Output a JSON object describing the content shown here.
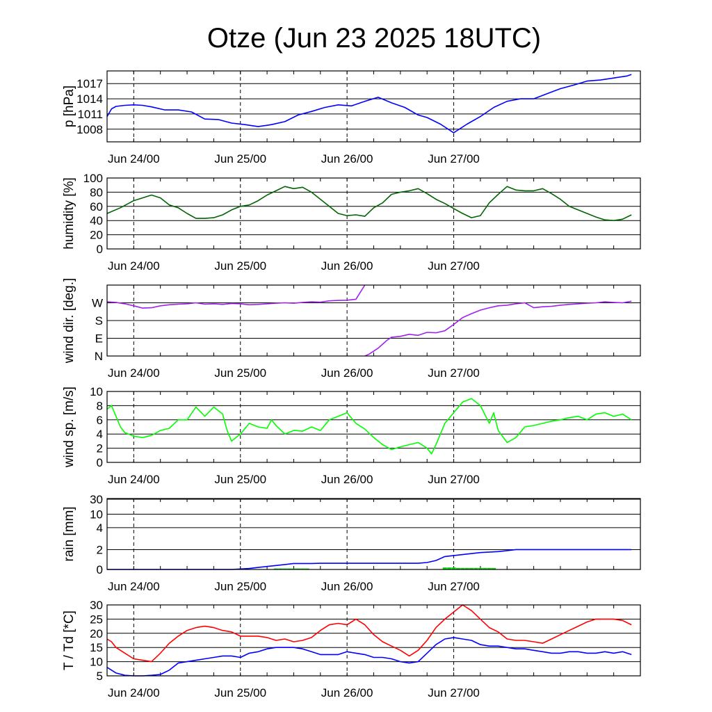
{
  "title": "Otze (Jun 23 2025 18UTC)",
  "x_tick_labels": [
    "Jun 24/00",
    "Jun 25/00",
    "Jun 26/00",
    "Jun 27/00"
  ],
  "colors": {
    "pressure": "#0000ff",
    "humidity": "#006400",
    "wind_dir": "#a020f0",
    "wind_speed": "#00ff00",
    "rain_accum": "#0000ff",
    "rain_rate": "#00dd00",
    "temperature": "#ff0000",
    "dewpoint": "#0000ff"
  },
  "chart_data": [
    {
      "type": "line",
      "ylabel": "p [hPa]",
      "x_unit": "hours since Jun 23 18UTC",
      "ylim": [
        1005.5,
        1019.5
      ],
      "yticks": [
        1008,
        1011,
        1014,
        1017
      ],
      "ytick_labels": [
        "1008",
        "1011",
        "1014",
        "1017"
      ],
      "series": [
        {
          "name": "pressure",
          "x": [
            0,
            1,
            2,
            4,
            6,
            8,
            10,
            13,
            16,
            19,
            22,
            25,
            28,
            31,
            34,
            37,
            40,
            43,
            46,
            49,
            52,
            55,
            58,
            61,
            64,
            67,
            70,
            72,
            75,
            78,
            81,
            84,
            87,
            90,
            93,
            96,
            99,
            102,
            105,
            108,
            111,
            114,
            117,
            118
          ],
          "y": [
            1010.5,
            1012.0,
            1012.5,
            1012.7,
            1012.8,
            1012.7,
            1012.4,
            1011.8,
            1011.8,
            1011.4,
            1010.0,
            1009.9,
            1009.2,
            1008.9,
            1008.5,
            1008.9,
            1009.5,
            1010.8,
            1011.5,
            1012.3,
            1012.8,
            1012.6,
            1013.5,
            1014.3,
            1013.2,
            1012.3,
            1010.8,
            1010.3,
            1009.0,
            1007.3,
            1009.0,
            1010.5,
            1012.3,
            1013.5,
            1014.0,
            1014.0,
            1015.0,
            1016.0,
            1016.7,
            1017.5,
            1017.7,
            1018.1,
            1018.5,
            1018.8
          ]
        }
      ]
    },
    {
      "type": "line",
      "ylabel": "humidity [%]",
      "ylim": [
        0,
        100
      ],
      "yticks": [
        0,
        20,
        40,
        60,
        80,
        100
      ],
      "ytick_labels": [
        "0",
        "20",
        "40",
        "60",
        "80",
        "100"
      ],
      "series": [
        {
          "name": "humidity",
          "x": [
            0,
            3,
            6,
            8,
            10,
            12,
            14,
            16,
            18,
            20,
            22,
            24,
            26,
            28,
            30,
            32,
            34,
            36,
            38,
            40,
            42,
            44,
            46,
            48,
            50,
            52,
            54,
            56,
            58,
            60,
            62,
            64,
            66,
            68,
            70,
            72,
            74,
            76,
            78,
            80,
            82,
            84,
            86,
            88,
            90,
            92,
            94,
            96,
            98,
            100,
            102,
            104,
            106,
            108,
            110,
            112,
            114,
            116,
            118
          ],
          "y": [
            50,
            58,
            68,
            72,
            76,
            72,
            62,
            58,
            50,
            43,
            43,
            44,
            48,
            55,
            60,
            62,
            68,
            76,
            82,
            88,
            85,
            87,
            80,
            70,
            60,
            50,
            47,
            48,
            46,
            58,
            65,
            77,
            80,
            82,
            85,
            78,
            70,
            64,
            57,
            50,
            44,
            47,
            65,
            77,
            88,
            83,
            82,
            82,
            85,
            78,
            70,
            60,
            55,
            50,
            45,
            41,
            40,
            42,
            48
          ]
        }
      ]
    },
    {
      "type": "line",
      "ylabel": "wind dir. [deg.]",
      "ylim": [
        0,
        360
      ],
      "yticks": [
        0,
        90,
        180,
        270
      ],
      "ytick_labels": [
        "N",
        "E",
        "S",
        "W"
      ],
      "series": [
        {
          "name": "wind direction",
          "x": [
            0,
            2,
            4,
            6,
            8,
            10,
            12,
            14,
            16,
            18,
            20,
            22,
            24,
            26,
            28,
            30,
            32,
            34,
            36,
            38,
            40,
            42,
            44,
            46,
            48,
            50,
            52,
            54,
            56,
            58,
            58.01,
            59,
            60,
            61,
            62,
            63,
            64,
            66,
            68,
            70,
            72,
            74,
            76,
            78,
            80,
            82,
            84,
            86,
            88,
            90,
            92,
            94,
            96,
            98,
            100,
            102,
            104,
            106,
            108,
            110,
            112,
            114,
            116,
            118
          ],
          "y": [
            275,
            272,
            265,
            255,
            243,
            245,
            255,
            260,
            263,
            265,
            270,
            263,
            265,
            262,
            267,
            265,
            260,
            262,
            265,
            268,
            270,
            268,
            272,
            275,
            273,
            280,
            282,
            283,
            288,
            360,
            0,
            10,
            25,
            40,
            60,
            80,
            95,
            100,
            110,
            105,
            120,
            118,
            128,
            160,
            195,
            215,
            233,
            245,
            255,
            258,
            265,
            270,
            245,
            250,
            252,
            258,
            262,
            265,
            268,
            270,
            275,
            272,
            270,
            278
          ]
        }
      ]
    },
    {
      "type": "line",
      "ylabel": "wind sp. [m/s]",
      "ylim": [
        0,
        10
      ],
      "yticks": [
        0,
        2,
        4,
        6,
        8,
        10
      ],
      "ytick_labels": [
        "0",
        "2",
        "4",
        "6",
        "8",
        "10"
      ],
      "series": [
        {
          "name": "wind speed",
          "x": [
            0,
            1,
            2,
            3,
            4,
            6,
            8,
            10,
            12,
            14,
            16,
            18,
            20,
            22,
            24,
            26,
            27,
            28,
            30,
            32,
            34,
            36,
            37,
            38,
            40,
            42,
            44,
            46,
            48,
            50,
            52,
            54,
            56,
            58,
            60,
            62,
            64,
            66,
            68,
            70,
            72,
            73,
            74,
            76,
            78,
            80,
            82,
            84,
            86,
            87,
            88,
            90,
            92,
            94,
            96,
            98,
            100,
            102,
            104,
            106,
            108,
            110,
            112,
            114,
            116,
            118
          ],
          "y": [
            7.5,
            8.0,
            6.5,
            5.0,
            4.2,
            3.7,
            3.5,
            3.8,
            4.5,
            4.8,
            6.0,
            6.0,
            7.8,
            6.5,
            7.8,
            6.8,
            4.5,
            3.0,
            4.0,
            5.5,
            5.0,
            4.8,
            6.0,
            5.2,
            4.0,
            4.5,
            4.4,
            5.0,
            4.5,
            6.0,
            6.5,
            7.0,
            5.5,
            4.7,
            3.5,
            2.5,
            1.8,
            2.2,
            2.5,
            2.8,
            2.0,
            1.2,
            2.5,
            5.5,
            7.0,
            8.5,
            9.0,
            8.0,
            5.5,
            7.0,
            4.5,
            2.8,
            3.5,
            5.0,
            5.2,
            5.5,
            5.8,
            6.0,
            6.3,
            6.5,
            6.0,
            6.8,
            7.0,
            6.5,
            6.8,
            6.0
          ]
        }
      ]
    },
    {
      "type": "line",
      "ylabel": "rain [mm]",
      "yticks": [
        0,
        2,
        4,
        10,
        30
      ],
      "ytick_labels": [
        "0",
        "2",
        "4",
        "10",
        "30"
      ],
      "series": [
        {
          "name": "rain accumulated",
          "x": [
            0,
            28,
            30,
            32,
            34,
            36,
            38,
            40,
            42,
            44,
            46,
            48,
            60,
            70,
            72,
            74,
            76,
            80,
            84,
            88,
            90,
            92,
            95,
            100,
            105,
            110,
            118
          ],
          "y": [
            0,
            0,
            0.05,
            0.1,
            0.2,
            0.3,
            0.4,
            0.5,
            0.6,
            0.6,
            0.6,
            0.62,
            0.62,
            0.62,
            0.7,
            0.9,
            1.3,
            1.5,
            1.7,
            1.8,
            1.9,
            2.0,
            2.0,
            2.0,
            2.0,
            2.0,
            2.0
          ]
        },
        {
          "name": "rain rate",
          "x": [
            38,
            39,
            40,
            41,
            42,
            43,
            44,
            45,
            76,
            77,
            78,
            79,
            80,
            81,
            82,
            83,
            84,
            85,
            86,
            87
          ],
          "y": [
            0.1,
            0.1,
            0.1,
            0.1,
            0.1,
            0.1,
            0.1,
            0.1,
            0.2,
            0.2,
            0.2,
            0.15,
            0.15,
            0.15,
            0.15,
            0.15,
            0.15,
            0.15,
            0.15,
            0.15
          ]
        }
      ]
    },
    {
      "type": "line",
      "ylabel": "T / Td [*C]",
      "ylim": [
        5,
        30
      ],
      "yticks": [
        5,
        10,
        15,
        20,
        25,
        30
      ],
      "ytick_labels": [
        "5",
        "10",
        "15",
        "20",
        "25",
        "30"
      ],
      "series": [
        {
          "name": "temperature",
          "x": [
            0,
            1,
            2,
            4,
            6,
            8,
            10,
            12,
            14,
            16,
            18,
            20,
            22,
            24,
            26,
            28,
            30,
            32,
            34,
            36,
            38,
            40,
            42,
            44,
            46,
            48,
            50,
            52,
            54,
            56,
            58,
            60,
            62,
            64,
            66,
            68,
            70,
            72,
            74,
            76,
            78,
            80,
            82,
            84,
            86,
            88,
            90,
            92,
            94,
            96,
            98,
            100,
            102,
            104,
            106,
            108,
            110,
            112,
            114,
            116,
            118
          ],
          "y": [
            18.0,
            17.0,
            15.0,
            13.0,
            11.0,
            10.5,
            10.0,
            13.0,
            16.5,
            19.0,
            21.0,
            22.0,
            22.5,
            22.0,
            21.0,
            20.5,
            19.0,
            19.0,
            19.0,
            18.5,
            17.5,
            18.0,
            17.0,
            17.5,
            18.5,
            21.0,
            23.0,
            23.5,
            23.0,
            25.0,
            23.0,
            19.5,
            17.0,
            15.5,
            14.0,
            12.0,
            14.0,
            17.5,
            22.0,
            25.0,
            27.5,
            30.0,
            28.0,
            25.0,
            22.0,
            20.5,
            18.0,
            17.5,
            17.5,
            17.0,
            16.5,
            18.0,
            19.5,
            21.0,
            22.5,
            24.0,
            25.0,
            25.0,
            25.0,
            24.5,
            23.0
          ]
        },
        {
          "name": "dewpoint",
          "x": [
            0,
            1,
            2,
            4,
            6,
            8,
            10,
            12,
            14,
            16,
            18,
            20,
            22,
            24,
            26,
            28,
            30,
            32,
            34,
            36,
            38,
            40,
            42,
            44,
            46,
            48,
            50,
            52,
            54,
            56,
            58,
            60,
            62,
            64,
            66,
            68,
            70,
            72,
            74,
            76,
            78,
            80,
            82,
            84,
            86,
            88,
            90,
            92,
            94,
            96,
            98,
            100,
            102,
            104,
            106,
            108,
            110,
            112,
            114,
            116,
            118
          ],
          "y": [
            8.0,
            7.0,
            6.0,
            5.2,
            5.0,
            5.0,
            5.2,
            5.5,
            7.0,
            9.5,
            10.0,
            10.5,
            11.0,
            11.5,
            12.0,
            12.0,
            11.5,
            13.0,
            13.5,
            14.5,
            15.0,
            15.0,
            15.0,
            14.5,
            13.5,
            12.5,
            12.5,
            12.5,
            13.5,
            13.0,
            12.5,
            11.5,
            11.5,
            11.0,
            10.0,
            9.5,
            10.0,
            13.0,
            16.0,
            18.0,
            18.5,
            18.0,
            17.5,
            16.0,
            15.5,
            15.5,
            15.0,
            14.5,
            14.5,
            14.0,
            13.5,
            13.0,
            13.0,
            13.5,
            13.5,
            13.0,
            13.0,
            13.5,
            13.0,
            13.5,
            12.5
          ]
        }
      ]
    }
  ]
}
